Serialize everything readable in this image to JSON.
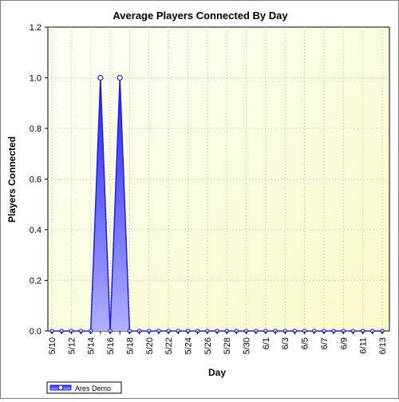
{
  "chart_data": {
    "type": "area",
    "title": "Average Players Connected By Day",
    "xlabel": "Day",
    "ylabel": "Players Connected",
    "ylim": [
      0,
      1.2
    ],
    "yticks": [
      "0.0",
      "0.2",
      "0.4",
      "0.6",
      "0.8",
      "1.0",
      "1.2"
    ],
    "xtick_labels": [
      "5/10",
      "5/12",
      "5/14",
      "5/16",
      "5/18",
      "5/20",
      "5/22",
      "5/24",
      "5/26",
      "5/28",
      "5/30",
      "6/1",
      "6/3",
      "6/5",
      "6/7",
      "6/9",
      "6/11",
      "6/13"
    ],
    "categories": [
      "5/10",
      "5/11",
      "5/12",
      "5/13",
      "5/14",
      "5/15",
      "5/16",
      "5/17",
      "5/18",
      "5/19",
      "5/20",
      "5/21",
      "5/22",
      "5/23",
      "5/24",
      "5/25",
      "5/26",
      "5/27",
      "5/28",
      "5/29",
      "5/30",
      "5/31",
      "6/1",
      "6/2",
      "6/3",
      "6/4",
      "6/5",
      "6/6",
      "6/7",
      "6/8",
      "6/9",
      "6/10",
      "6/11",
      "6/12",
      "6/13"
    ],
    "series": [
      {
        "name": "Ares Demo",
        "values": [
          0,
          0,
          0,
          0,
          0,
          1,
          0,
          1,
          0,
          0,
          0,
          0,
          0,
          0,
          0,
          0,
          0,
          0,
          0,
          0,
          0,
          0,
          0,
          0,
          0,
          0,
          0,
          0,
          0,
          0,
          0,
          0,
          0,
          0,
          0
        ]
      }
    ],
    "grid": true,
    "legend_position": "bottom-left",
    "colors": {
      "line": "#2020e0",
      "fill_top": "#2020ff",
      "fill_bottom": "#b0b0ff",
      "marker_fill": "#ffffff",
      "plot_bg_light": "#fffff8",
      "plot_bg_dark": "#fafac8"
    }
  }
}
